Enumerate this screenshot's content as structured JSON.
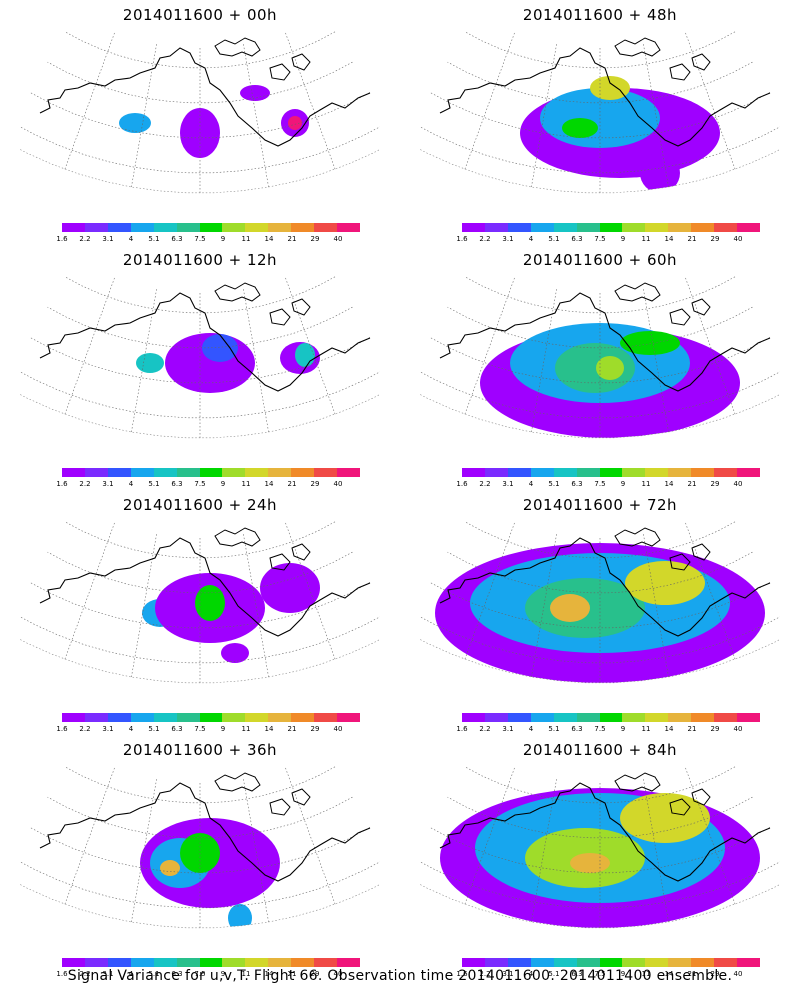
{
  "colorbar": {
    "labels": [
      "1.6",
      "2.2",
      "3.1",
      "4",
      "5.1",
      "6.3",
      "7.5",
      "9",
      "11",
      "14",
      "21",
      "29",
      "40"
    ],
    "colors": [
      "#9f00ff",
      "#7a2bff",
      "#3355ff",
      "#17a6ee",
      "#17c4c4",
      "#28c08c",
      "#00d700",
      "#9fdc2a",
      "#d2d72a",
      "#e6b43c",
      "#f08a28",
      "#f04a46",
      "#f0157a"
    ]
  },
  "panels": [
    {
      "title": "2014011600 + 00h",
      "level": 0
    },
    {
      "title": "2014011600 + 48h",
      "level": 4
    },
    {
      "title": "2014011600 + 12h",
      "level": 1
    },
    {
      "title": "2014011600 + 60h",
      "level": 5
    },
    {
      "title": "2014011600 + 24h",
      "level": 2
    },
    {
      "title": "2014011600 + 72h",
      "level": 6
    },
    {
      "title": "2014011600 + 36h",
      "level": 3
    },
    {
      "title": "2014011600 + 84h",
      "level": 7
    }
  ],
  "footer": "Signal Variance for u,v,T. Flight 66. Observation time 2014011600. 2014011400 ensemble."
}
